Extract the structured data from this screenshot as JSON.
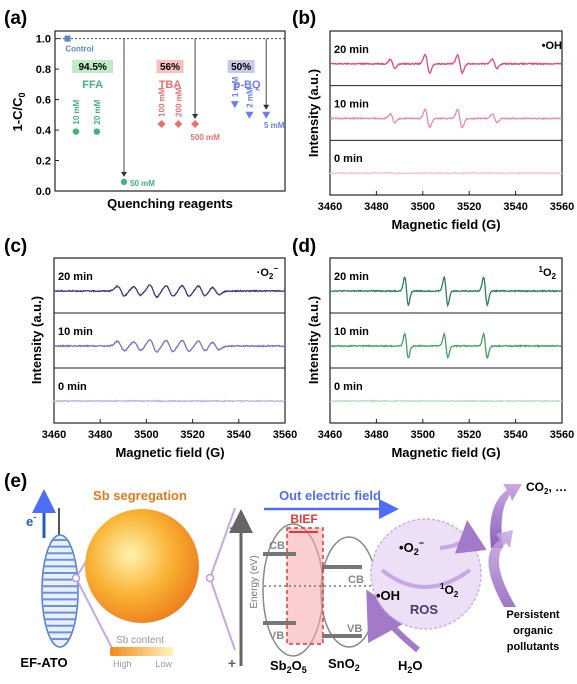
{
  "panels": {
    "a": {
      "label": "(a)"
    },
    "b": {
      "label": "(b)"
    },
    "c": {
      "label": "(c)"
    },
    "d": {
      "label": "(d)"
    },
    "e": {
      "label": "(e)"
    }
  },
  "chart_data": [
    {
      "panel": "a",
      "type": "scatter",
      "xlabel": "Quenching reagents",
      "ylabel": "1-C/C0",
      "ylabel_parts": {
        "main": "1-C/C",
        "sub": "0"
      },
      "ylim": [
        0.0,
        1.05
      ],
      "yticks": [
        "0.0",
        "0.2",
        "0.4",
        "0.6",
        "0.8",
        "1.0"
      ],
      "reference_line": 1.0,
      "control": {
        "name": "Control",
        "x": 0.3,
        "y": 1.0,
        "color": "#5b86c4"
      },
      "series": [
        {
          "name": "FFA",
          "color": "#3fb57a",
          "marker": "circle",
          "suppression": "94.5%",
          "points": [
            {
              "label": "10 mM",
              "x": 0.5,
              "y": 0.39
            },
            {
              "label": "20 mM",
              "x": 1.0,
              "y": 0.39
            },
            {
              "label": "50 mM",
              "x": 1.65,
              "y": 0.06
            }
          ]
        },
        {
          "name": "TBA",
          "color": "#ea6f6f",
          "marker": "diamond",
          "suppression": "56%",
          "points": [
            {
              "label": "100 mM",
              "x": 2.55,
              "y": 0.44
            },
            {
              "label": "200 mM",
              "x": 2.95,
              "y": 0.44
            },
            {
              "label": "500 mM",
              "x": 3.35,
              "y": 0.44
            }
          ]
        },
        {
          "name": "p-BQ",
          "color": "#6a7de8",
          "marker": "triangle-down",
          "suppression": "50%",
          "points": [
            {
              "label": "1 mM",
              "x": 4.3,
              "y": 0.57
            },
            {
              "label": "2 mM",
              "x": 4.65,
              "y": 0.5
            },
            {
              "label": "5 mM",
              "x": 5.05,
              "y": 0.5
            }
          ]
        }
      ]
    },
    {
      "panel": "b",
      "type": "line",
      "species": "•OH",
      "xlabel": "Magnetic field (G)",
      "ylabel": "Intensity (a.u.)",
      "xlim": [
        3460,
        3560
      ],
      "xticks": [
        "3460",
        "3480",
        "3500",
        "3520",
        "3540",
        "3560"
      ],
      "series": [
        {
          "name": "20 min",
          "color": "#e0457d",
          "peaks": [
            {
              "x": 3487,
              "a": 0.5
            },
            {
              "x": 3502,
              "a": 1.0
            },
            {
              "x": 3516,
              "a": 1.0
            },
            {
              "x": 3531,
              "a": 0.5
            }
          ]
        },
        {
          "name": "10 min",
          "color": "#ec89ad",
          "peaks": [
            {
              "x": 3487,
              "a": 0.5
            },
            {
              "x": 3502,
              "a": 1.0
            },
            {
              "x": 3516,
              "a": 1.0
            },
            {
              "x": 3531,
              "a": 0.5
            }
          ]
        },
        {
          "name": "0 min",
          "color": "#f6c3d5",
          "peaks": []
        }
      ]
    },
    {
      "panel": "c",
      "type": "line",
      "species_parts": {
        "dot": "·",
        "main": "O",
        "sub": "2",
        "sup": "−"
      },
      "xlabel": "Magnetic field (G)",
      "ylabel": "Intensity (a.u.)",
      "xlim": [
        3460,
        3560
      ],
      "xticks": [
        "3460",
        "3480",
        "3500",
        "3520",
        "3540",
        "3560"
      ],
      "series": [
        {
          "name": "20 min",
          "color": "#3d3680",
          "peaks": [
            {
              "x": 3489,
              "a": 0.8
            },
            {
              "x": 3496,
              "a": 0.7
            },
            {
              "x": 3503,
              "a": 1.0
            },
            {
              "x": 3510,
              "a": 0.9
            },
            {
              "x": 3517,
              "a": 0.9
            },
            {
              "x": 3524,
              "a": 0.8
            },
            {
              "x": 3530,
              "a": 0.6
            }
          ]
        },
        {
          "name": "10 min",
          "color": "#7a6fc0",
          "peaks": [
            {
              "x": 3489,
              "a": 0.8
            },
            {
              "x": 3496,
              "a": 0.7
            },
            {
              "x": 3503,
              "a": 1.0
            },
            {
              "x": 3510,
              "a": 0.9
            },
            {
              "x": 3517,
              "a": 0.9
            },
            {
              "x": 3524,
              "a": 0.8
            },
            {
              "x": 3530,
              "a": 0.6
            }
          ]
        },
        {
          "name": "0 min",
          "color": "#bdb7e0",
          "peaks": []
        }
      ]
    },
    {
      "panel": "d",
      "type": "line",
      "species_parts": {
        "pre": "1",
        "main": "O",
        "sub": "2"
      },
      "xlabel": "Magnetic field (G)",
      "ylabel": "Intensity (a.u.)",
      "xlim": [
        3460,
        3560
      ],
      "xticks": [
        "3460",
        "3480",
        "3500",
        "3520",
        "3540",
        "3560"
      ],
      "series": [
        {
          "name": "20 min",
          "color": "#2f7d5d",
          "peaks": [
            {
              "x": 3493,
              "a": 1.0
            },
            {
              "x": 3510,
              "a": 1.0
            },
            {
              "x": 3527,
              "a": 1.0
            }
          ]
        },
        {
          "name": "10 min",
          "color": "#45a15b",
          "peaks": [
            {
              "x": 3493,
              "a": 0.85
            },
            {
              "x": 3510,
              "a": 0.85
            },
            {
              "x": 3527,
              "a": 0.85
            }
          ]
        },
        {
          "name": "0 min",
          "color": "#b8dfbe",
          "peaks": []
        }
      ]
    }
  ],
  "schematic": {
    "electron": "e",
    "electron_sup": "-",
    "segregation": "Sb segregation",
    "sb_content": "Sb content",
    "high": "High",
    "low": "Low",
    "ef_ato": "EF-ATO",
    "minus": "-",
    "plus": "+",
    "energy": "Energy (eV)",
    "out_field": "Out electric field",
    "bief": "BIEF",
    "cb": "CB",
    "vb": "VB",
    "cb2": "CB",
    "vb2": "VB",
    "sb2o5": {
      "main": "Sb",
      "sub1": "2",
      "mid": "O",
      "sub2": "5"
    },
    "sno2": {
      "main": "SnO",
      "sub": "2"
    },
    "h2o": {
      "a": "H",
      "sub": "2",
      "b": "O"
    },
    "superoxide": {
      "dot": "•",
      "main": "O",
      "sub": "2",
      "sup": "−"
    },
    "singlet": {
      "pre": "1",
      "main": "O",
      "sub": "2"
    },
    "hydroxyl": "•OH",
    "ros": "ROS",
    "co2": {
      "main": "CO",
      "sub": "2",
      "tail": ", …"
    },
    "pollutants": [
      "Persistent",
      "organic",
      "pollutants"
    ]
  }
}
